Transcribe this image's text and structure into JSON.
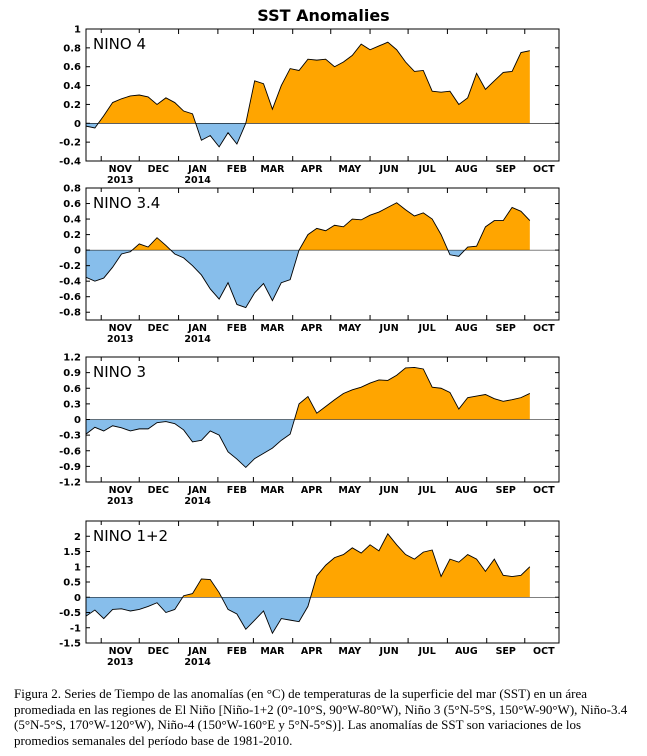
{
  "title": "SST Anomalies",
  "caption": "Figura 2. Series de Tiempo de las anomalías (en °C) de temperaturas de la superficie del mar (SST) en un área promediada en las regiones de El Niño [Niño-1+2 (0°-10°S, 90°W-80°W), Niño 3 (5°N-5°S, 150°W-90°W), Niño-3.4 (5°N-5°S, 170°W-120°W), Niño-4 (150°W-160°E y 5°N-5°S)]. Las anomalías de SST son variaciones de los promedios semanales del período base de 1981-2010.",
  "colors": {
    "positive": "#FFA500",
    "negative": "#87BEEB",
    "line": "#000000"
  },
  "x_axis": {
    "start": "2013-10-20",
    "end": "2014-10-28",
    "ticks": [
      {
        "date": "2013-11-01",
        "label": "NOV",
        "year": "2013"
      },
      {
        "date": "2013-12-01",
        "label": "DEC",
        "year": ""
      },
      {
        "date": "2014-01-01",
        "label": "JAN",
        "year": "2014"
      },
      {
        "date": "2014-02-01",
        "label": "FEB",
        "year": ""
      },
      {
        "date": "2014-03-01",
        "label": "MAR",
        "year": ""
      },
      {
        "date": "2014-04-01",
        "label": "APR",
        "year": ""
      },
      {
        "date": "2014-05-01",
        "label": "MAY",
        "year": ""
      },
      {
        "date": "2014-06-01",
        "label": "JUN",
        "year": ""
      },
      {
        "date": "2014-07-01",
        "label": "JUL",
        "year": ""
      },
      {
        "date": "2014-08-01",
        "label": "AUG",
        "year": ""
      },
      {
        "date": "2014-09-01",
        "label": "SEP",
        "year": ""
      },
      {
        "date": "2014-10-01",
        "label": "OCT",
        "year": ""
      }
    ]
  },
  "chart_data": [
    {
      "type": "area",
      "name": "NINO 4",
      "ylim": [
        -0.4,
        1.0
      ],
      "yticks": [
        "1",
        "0.8",
        "0.6",
        "0.4",
        "0.2",
        "0",
        "-0.2",
        "-0.4"
      ],
      "ytick_values": [
        1.0,
        0.8,
        0.6,
        0.4,
        0.2,
        0.0,
        -0.2,
        -0.4
      ],
      "x": [
        "2013-10-20",
        "2013-10-27",
        "2013-11-03",
        "2013-11-10",
        "2013-11-17",
        "2013-11-24",
        "2013-12-01",
        "2013-12-08",
        "2013-12-15",
        "2013-12-22",
        "2013-12-29",
        "2014-01-05",
        "2014-01-12",
        "2014-01-19",
        "2014-01-26",
        "2014-02-02",
        "2014-02-09",
        "2014-02-16",
        "2014-02-23",
        "2014-03-02",
        "2014-03-09",
        "2014-03-16",
        "2014-03-23",
        "2014-03-30",
        "2014-04-06",
        "2014-04-13",
        "2014-04-20",
        "2014-04-27",
        "2014-05-04",
        "2014-05-11",
        "2014-05-18",
        "2014-05-25",
        "2014-06-01",
        "2014-06-08",
        "2014-06-15",
        "2014-06-22",
        "2014-06-29",
        "2014-07-06",
        "2014-07-13",
        "2014-07-20",
        "2014-07-27",
        "2014-08-03",
        "2014-08-10",
        "2014-08-17",
        "2014-08-24",
        "2014-08-31",
        "2014-09-07",
        "2014-09-14",
        "2014-09-21",
        "2014-09-28",
        "2014-10-05"
      ],
      "y": [
        -0.03,
        -0.05,
        0.08,
        0.22,
        0.26,
        0.29,
        0.3,
        0.28,
        0.2,
        0.27,
        0.22,
        0.13,
        0.1,
        -0.18,
        -0.13,
        -0.25,
        -0.1,
        -0.22,
        0.0,
        0.45,
        0.42,
        0.15,
        0.4,
        0.58,
        0.56,
        0.68,
        0.67,
        0.68,
        0.6,
        0.65,
        0.72,
        0.84,
        0.78,
        0.82,
        0.86,
        0.78,
        0.65,
        0.55,
        0.56,
        0.34,
        0.33,
        0.34,
        0.2,
        0.27,
        0.53,
        0.36,
        0.45,
        0.54,
        0.55,
        0.75,
        0.77
      ]
    },
    {
      "type": "area",
      "name": "NINO 3.4",
      "ylim": [
        -0.9,
        0.8
      ],
      "yticks": [
        "0.8",
        "0.6",
        "0.4",
        "0.2",
        "0",
        "-0.2",
        "-0.4",
        "-0.6",
        "-0.8"
      ],
      "ytick_values": [
        0.8,
        0.6,
        0.4,
        0.2,
        0.0,
        -0.2,
        -0.4,
        -0.6,
        -0.8
      ],
      "x": [
        "2013-10-20",
        "2013-10-27",
        "2013-11-03",
        "2013-11-10",
        "2013-11-17",
        "2013-11-24",
        "2013-12-01",
        "2013-12-08",
        "2013-12-15",
        "2013-12-22",
        "2013-12-29",
        "2014-01-05",
        "2014-01-12",
        "2014-01-19",
        "2014-01-26",
        "2014-02-02",
        "2014-02-09",
        "2014-02-16",
        "2014-02-23",
        "2014-03-02",
        "2014-03-09",
        "2014-03-16",
        "2014-03-23",
        "2014-03-30",
        "2014-04-06",
        "2014-04-13",
        "2014-04-20",
        "2014-04-27",
        "2014-05-04",
        "2014-05-11",
        "2014-05-18",
        "2014-05-25",
        "2014-06-01",
        "2014-06-08",
        "2014-06-15",
        "2014-06-22",
        "2014-06-29",
        "2014-07-06",
        "2014-07-13",
        "2014-07-20",
        "2014-07-27",
        "2014-08-03",
        "2014-08-10",
        "2014-08-17",
        "2014-08-24",
        "2014-08-31",
        "2014-09-07",
        "2014-09-14",
        "2014-09-21",
        "2014-09-28",
        "2014-10-05"
      ],
      "y": [
        -0.35,
        -0.4,
        -0.36,
        -0.22,
        -0.05,
        -0.02,
        0.08,
        0.04,
        0.16,
        0.06,
        -0.05,
        -0.1,
        -0.2,
        -0.32,
        -0.5,
        -0.63,
        -0.42,
        -0.7,
        -0.74,
        -0.55,
        -0.43,
        -0.65,
        -0.42,
        -0.38,
        0.0,
        0.2,
        0.28,
        0.25,
        0.32,
        0.3,
        0.4,
        0.39,
        0.45,
        0.49,
        0.55,
        0.61,
        0.52,
        0.44,
        0.48,
        0.4,
        0.2,
        -0.06,
        -0.08,
        0.04,
        0.05,
        0.3,
        0.38,
        0.38,
        0.55,
        0.5,
        0.38
      ]
    },
    {
      "type": "area",
      "name": "NINO 3",
      "ylim": [
        -1.2,
        1.2
      ],
      "yticks": [
        "1.2",
        "0.9",
        "0.6",
        "0.3",
        "0",
        "-0.3",
        "-0.6",
        "-0.9",
        "-1.2"
      ],
      "ytick_values": [
        1.2,
        0.9,
        0.6,
        0.3,
        0.0,
        -0.3,
        -0.6,
        -0.9,
        -1.2
      ],
      "x": [
        "2013-10-20",
        "2013-10-27",
        "2013-11-03",
        "2013-11-10",
        "2013-11-17",
        "2013-11-24",
        "2013-12-01",
        "2013-12-08",
        "2013-12-15",
        "2013-12-22",
        "2013-12-29",
        "2014-01-05",
        "2014-01-12",
        "2014-01-19",
        "2014-01-26",
        "2014-02-02",
        "2014-02-09",
        "2014-02-16",
        "2014-02-23",
        "2014-03-02",
        "2014-03-09",
        "2014-03-16",
        "2014-03-23",
        "2014-03-30",
        "2014-04-06",
        "2014-04-13",
        "2014-04-20",
        "2014-04-27",
        "2014-05-04",
        "2014-05-11",
        "2014-05-18",
        "2014-05-25",
        "2014-06-01",
        "2014-06-08",
        "2014-06-15",
        "2014-06-22",
        "2014-06-29",
        "2014-07-06",
        "2014-07-13",
        "2014-07-20",
        "2014-07-27",
        "2014-08-03",
        "2014-08-10",
        "2014-08-17",
        "2014-08-24",
        "2014-08-31",
        "2014-09-07",
        "2014-09-14",
        "2014-09-21",
        "2014-09-28",
        "2014-10-05"
      ],
      "y": [
        -0.28,
        -0.15,
        -0.22,
        -0.12,
        -0.16,
        -0.22,
        -0.18,
        -0.18,
        -0.06,
        -0.04,
        -0.08,
        -0.2,
        -0.43,
        -0.4,
        -0.22,
        -0.3,
        -0.62,
        -0.76,
        -0.92,
        -0.75,
        -0.65,
        -0.55,
        -0.4,
        -0.28,
        0.3,
        0.44,
        0.12,
        0.25,
        0.38,
        0.5,
        0.57,
        0.62,
        0.7,
        0.76,
        0.75,
        0.85,
        0.99,
        1.0,
        0.97,
        0.62,
        0.6,
        0.52,
        0.2,
        0.42,
        0.45,
        0.48,
        0.4,
        0.35,
        0.38,
        0.42,
        0.5
      ]
    },
    {
      "type": "area",
      "name": "NINO 1+2",
      "ylim": [
        -1.5,
        2.5
      ],
      "yticks": [
        "2",
        "1.5",
        "1",
        "0.5",
        "0",
        "-0.5",
        "-1",
        "-1.5"
      ],
      "ytick_values": [
        2.0,
        1.5,
        1.0,
        0.5,
        0.0,
        -0.5,
        -1.0,
        -1.5
      ],
      "x": [
        "2013-10-20",
        "2013-10-27",
        "2013-11-03",
        "2013-11-10",
        "2013-11-17",
        "2013-11-24",
        "2013-12-01",
        "2013-12-08",
        "2013-12-15",
        "2013-12-22",
        "2013-12-29",
        "2014-01-05",
        "2014-01-12",
        "2014-01-19",
        "2014-01-26",
        "2014-02-02",
        "2014-02-09",
        "2014-02-16",
        "2014-02-23",
        "2014-03-02",
        "2014-03-09",
        "2014-03-16",
        "2014-03-23",
        "2014-03-30",
        "2014-04-06",
        "2014-04-13",
        "2014-04-20",
        "2014-04-27",
        "2014-05-04",
        "2014-05-11",
        "2014-05-18",
        "2014-05-25",
        "2014-06-01",
        "2014-06-08",
        "2014-06-15",
        "2014-06-22",
        "2014-06-29",
        "2014-07-06",
        "2014-07-13",
        "2014-07-20",
        "2014-07-27",
        "2014-08-03",
        "2014-08-10",
        "2014-08-17",
        "2014-08-24",
        "2014-08-31",
        "2014-09-07",
        "2014-09-14",
        "2014-09-21",
        "2014-09-28",
        "2014-10-05"
      ],
      "y": [
        -0.62,
        -0.42,
        -0.7,
        -0.4,
        -0.38,
        -0.45,
        -0.4,
        -0.3,
        -0.18,
        -0.5,
        -0.4,
        0.05,
        0.12,
        0.6,
        0.58,
        0.15,
        -0.4,
        -0.55,
        -1.05,
        -0.75,
        -0.45,
        -1.18,
        -0.7,
        -0.75,
        -0.8,
        -0.3,
        0.7,
        1.05,
        1.3,
        1.4,
        1.62,
        1.45,
        1.72,
        1.52,
        2.08,
        1.72,
        1.4,
        1.25,
        1.48,
        1.55,
        0.68,
        1.25,
        1.15,
        1.4,
        1.25,
        0.85,
        1.25,
        0.72,
        0.68,
        0.72,
        1.0
      ]
    }
  ]
}
